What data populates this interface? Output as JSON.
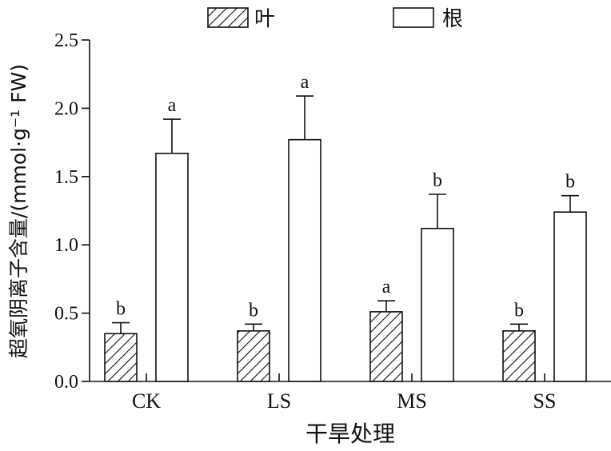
{
  "chart_data": {
    "type": "bar",
    "categories": [
      "CK",
      "LS",
      "MS",
      "SS"
    ],
    "series": [
      {
        "name": "叶",
        "pattern": "hatched",
        "values": [
          0.35,
          0.37,
          0.51,
          0.37
        ],
        "errors": [
          0.08,
          0.05,
          0.08,
          0.05
        ],
        "significance": [
          "b",
          "b",
          "a",
          "b"
        ]
      },
      {
        "name": "根",
        "pattern": "open",
        "values": [
          1.67,
          1.77,
          1.12,
          1.24
        ],
        "errors": [
          0.25,
          0.32,
          0.25,
          0.12
        ],
        "significance": [
          "a",
          "a",
          "b",
          "b"
        ]
      }
    ],
    "xlabel": "干旱处理",
    "ylabel": "超氧阴离子含量/(mmol·g⁻¹ FW)",
    "ylim": [
      0,
      2.5
    ],
    "yticks": [
      "0.0",
      "0.5",
      "1.0",
      "1.5",
      "2.0",
      "2.5"
    ],
    "grid": false,
    "legend_position": "top-center",
    "colors": {
      "bar_fill": "#ffffff",
      "stroke": "#111111"
    }
  }
}
